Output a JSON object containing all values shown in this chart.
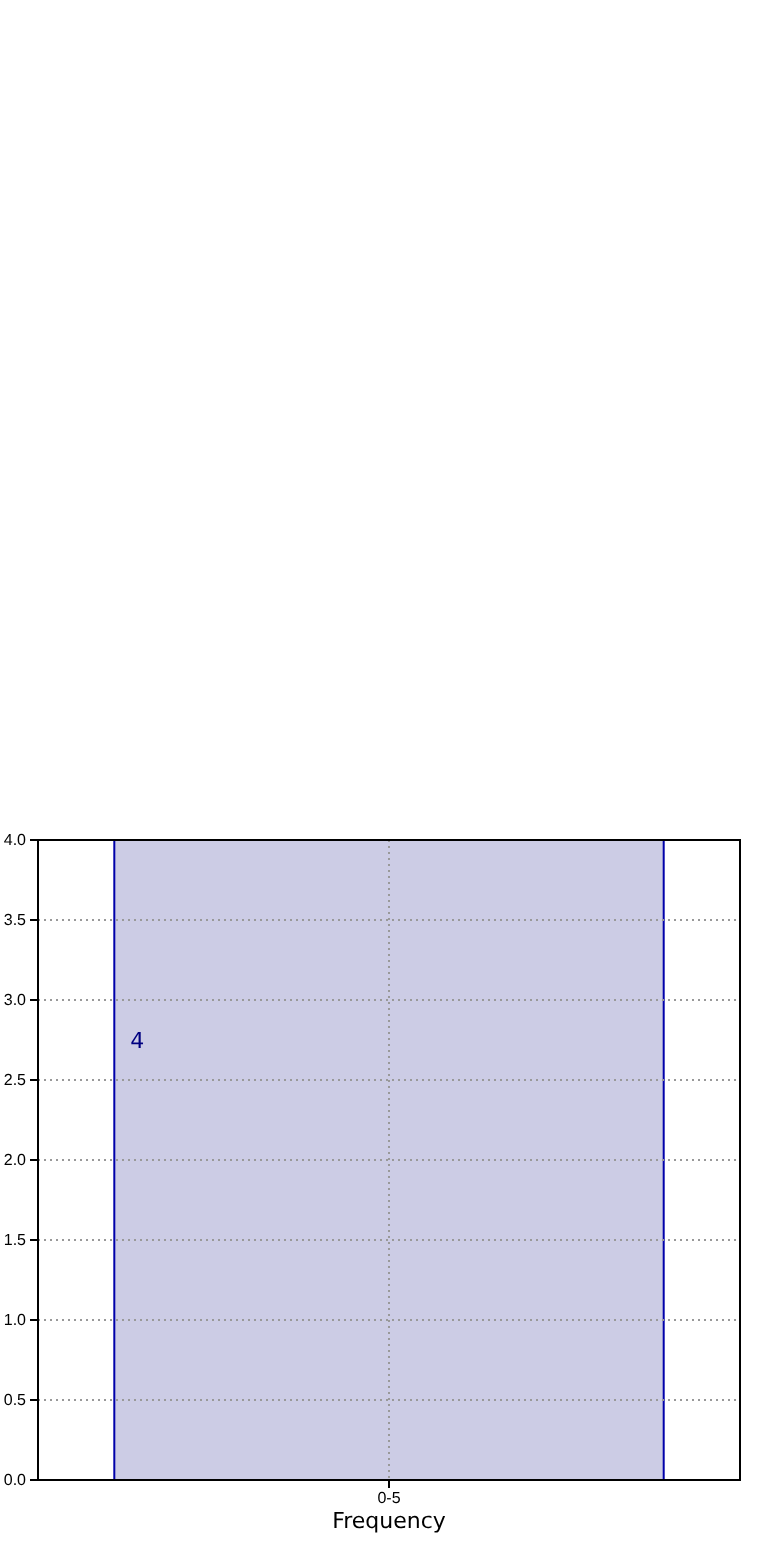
{
  "chart_data": {
    "type": "bar",
    "xlabel": "Frequency",
    "categories": [
      "0-5"
    ],
    "values": [
      4
    ],
    "color": "#ccccE5",
    "ylim": [
      0,
      4
    ],
    "yticks": [
      {
        "value": 0,
        "label": "0.0"
      },
      {
        "value": 0.5,
        "label": "0.5"
      },
      {
        "value": 1,
        "label": "1.0"
      },
      {
        "value": 1.5,
        "label": "1.5"
      },
      {
        "value": 2,
        "label": "2.0"
      },
      {
        "value": 2.5,
        "label": "2.5"
      },
      {
        "value": 3,
        "label": "3.0"
      },
      {
        "value": 3.5,
        "label": "3.5"
      },
      {
        "value": 4,
        "label": "4.0"
      }
    ],
    "grid": true,
    "data_labels": true
  }
}
